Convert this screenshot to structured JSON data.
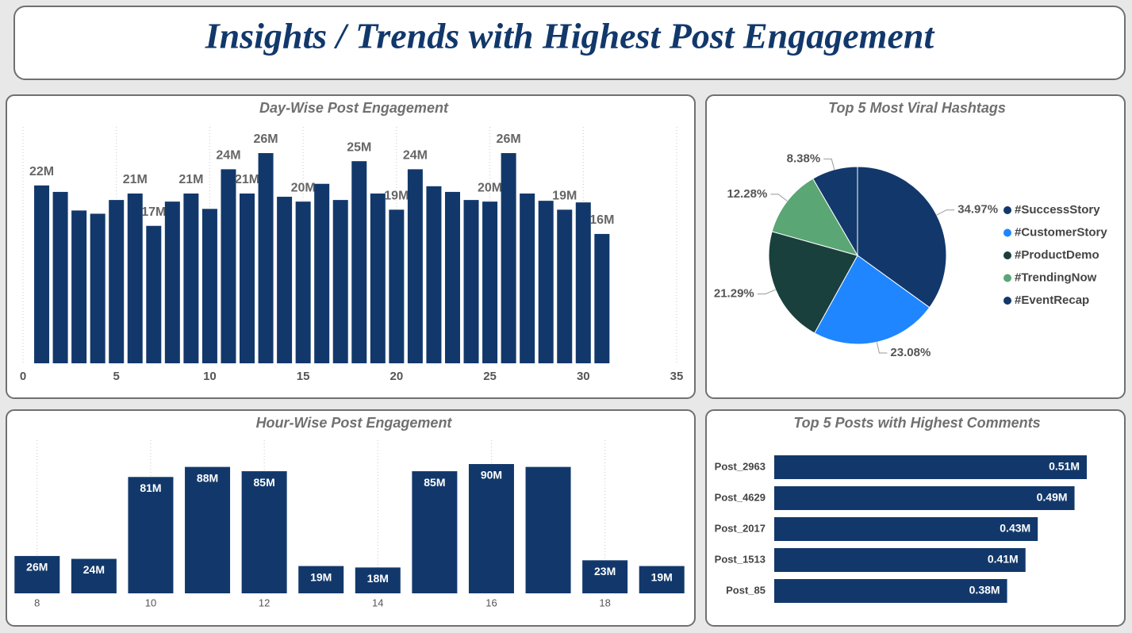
{
  "title": "Insights / Trends with Highest Post Engagement",
  "chart_data": [
    {
      "type": "bar",
      "title": "Day-Wise Post Engagement",
      "color": "#12386b",
      "x": [
        1,
        2,
        3,
        4,
        5,
        6,
        7,
        8,
        9,
        10,
        11,
        12,
        13,
        14,
        15,
        16,
        17,
        18,
        19,
        20,
        21,
        22,
        23,
        24,
        25,
        26,
        27,
        28,
        29,
        30,
        31
      ],
      "values": [
        22,
        21.2,
        18.9,
        18.5,
        20.2,
        21,
        17,
        20,
        21,
        19.1,
        24,
        21,
        26,
        20.6,
        20,
        22.2,
        20.2,
        25,
        21,
        19,
        24,
        21.9,
        21.2,
        20.2,
        20,
        26,
        21,
        20.1,
        19,
        19.9,
        16
      ],
      "value_labels": [
        "22M",
        null,
        null,
        null,
        null,
        "21M",
        "17M",
        null,
        "21M",
        null,
        "24M",
        "21M",
        "26M",
        null,
        "20M",
        null,
        null,
        "25M",
        null,
        "19M",
        "24M",
        null,
        null,
        null,
        "20M",
        "26M",
        null,
        null,
        "19M",
        null,
        "16M"
      ],
      "xlim": [
        0,
        35
      ],
      "xticks": [
        0,
        5,
        10,
        15,
        20,
        25,
        30,
        35
      ],
      "grid": true
    },
    {
      "type": "pie",
      "title": "Top 5 Most Viral Hashtags",
      "categories": [
        "#SuccessStory",
        "#CustomerStory",
        "#ProductDemo",
        "#TrendingNow",
        "#EventRecap"
      ],
      "values": [
        34.97,
        23.08,
        21.29,
        12.28,
        8.38
      ],
      "value_labels": [
        "34.97%",
        "23.08%",
        "21.29%",
        "12.28%",
        "8.38%"
      ],
      "colors": [
        "#12386b",
        "#1f86ff",
        "#1a403d",
        "#5aa674",
        "#13386b"
      ]
    },
    {
      "type": "bar",
      "title": "Hour-Wise Post Engagement",
      "color": "#12386b",
      "x": [
        8,
        9,
        10,
        11,
        12,
        13,
        14,
        15,
        16,
        17,
        18,
        19
      ],
      "values": [
        26,
        24,
        81,
        88,
        85,
        19,
        18,
        85,
        90,
        88,
        23,
        19
      ],
      "value_labels": [
        "26M",
        "24M",
        "81M",
        "88M",
        "85M",
        "19M",
        "18M",
        "85M",
        "90M",
        null,
        "23M",
        "19M"
      ],
      "xlim": [
        7.5,
        19.5
      ],
      "xticks": [
        8,
        10,
        12,
        14,
        16,
        18
      ],
      "grid": true
    },
    {
      "type": "barh",
      "title": "Top 5 Posts with Highest Comments",
      "color": "#12386b",
      "categories": [
        "Post_2963",
        "Post_4629",
        "Post_2017",
        "Post_1513",
        "Post_85"
      ],
      "values": [
        0.51,
        0.49,
        0.43,
        0.41,
        0.38
      ],
      "value_labels": [
        "0.51M",
        "0.49M",
        "0.43M",
        "0.41M",
        "0.38M"
      ]
    }
  ]
}
